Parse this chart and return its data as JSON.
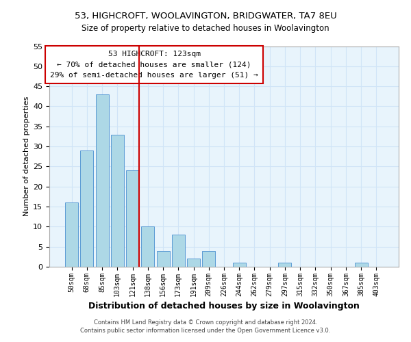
{
  "title": "53, HIGHCROFT, WOOLAVINGTON, BRIDGWATER, TA7 8EU",
  "subtitle": "Size of property relative to detached houses in Woolavington",
  "xlabel": "Distribution of detached houses by size in Woolavington",
  "ylabel": "Number of detached properties",
  "bar_labels": [
    "50sqm",
    "68sqm",
    "85sqm",
    "103sqm",
    "121sqm",
    "138sqm",
    "156sqm",
    "173sqm",
    "191sqm",
    "209sqm",
    "226sqm",
    "244sqm",
    "262sqm",
    "279sqm",
    "297sqm",
    "315sqm",
    "332sqm",
    "350sqm",
    "367sqm",
    "385sqm",
    "403sqm"
  ],
  "bar_values": [
    16,
    29,
    43,
    33,
    24,
    10,
    4,
    8,
    2,
    4,
    0,
    1,
    0,
    0,
    1,
    0,
    0,
    0,
    0,
    1,
    0
  ],
  "bar_color": "#add8e6",
  "bar_edge_color": "#5b9bd5",
  "vline_color": "#cc0000",
  "ylim": [
    0,
    55
  ],
  "yticks": [
    0,
    5,
    10,
    15,
    20,
    25,
    30,
    35,
    40,
    45,
    50,
    55
  ],
  "annotation_title": "53 HIGHCROFT: 123sqm",
  "annotation_line1": "← 70% of detached houses are smaller (124)",
  "annotation_line2": "29% of semi-detached houses are larger (51) →",
  "annotation_box_color": "#ffffff",
  "annotation_box_edge": "#cc0000",
  "footer_line1": "Contains HM Land Registry data © Crown copyright and database right 2024.",
  "footer_line2": "Contains public sector information licensed under the Open Government Licence v3.0.",
  "grid_color": "#d0e4f7",
  "background_color": "#e8f4fc"
}
